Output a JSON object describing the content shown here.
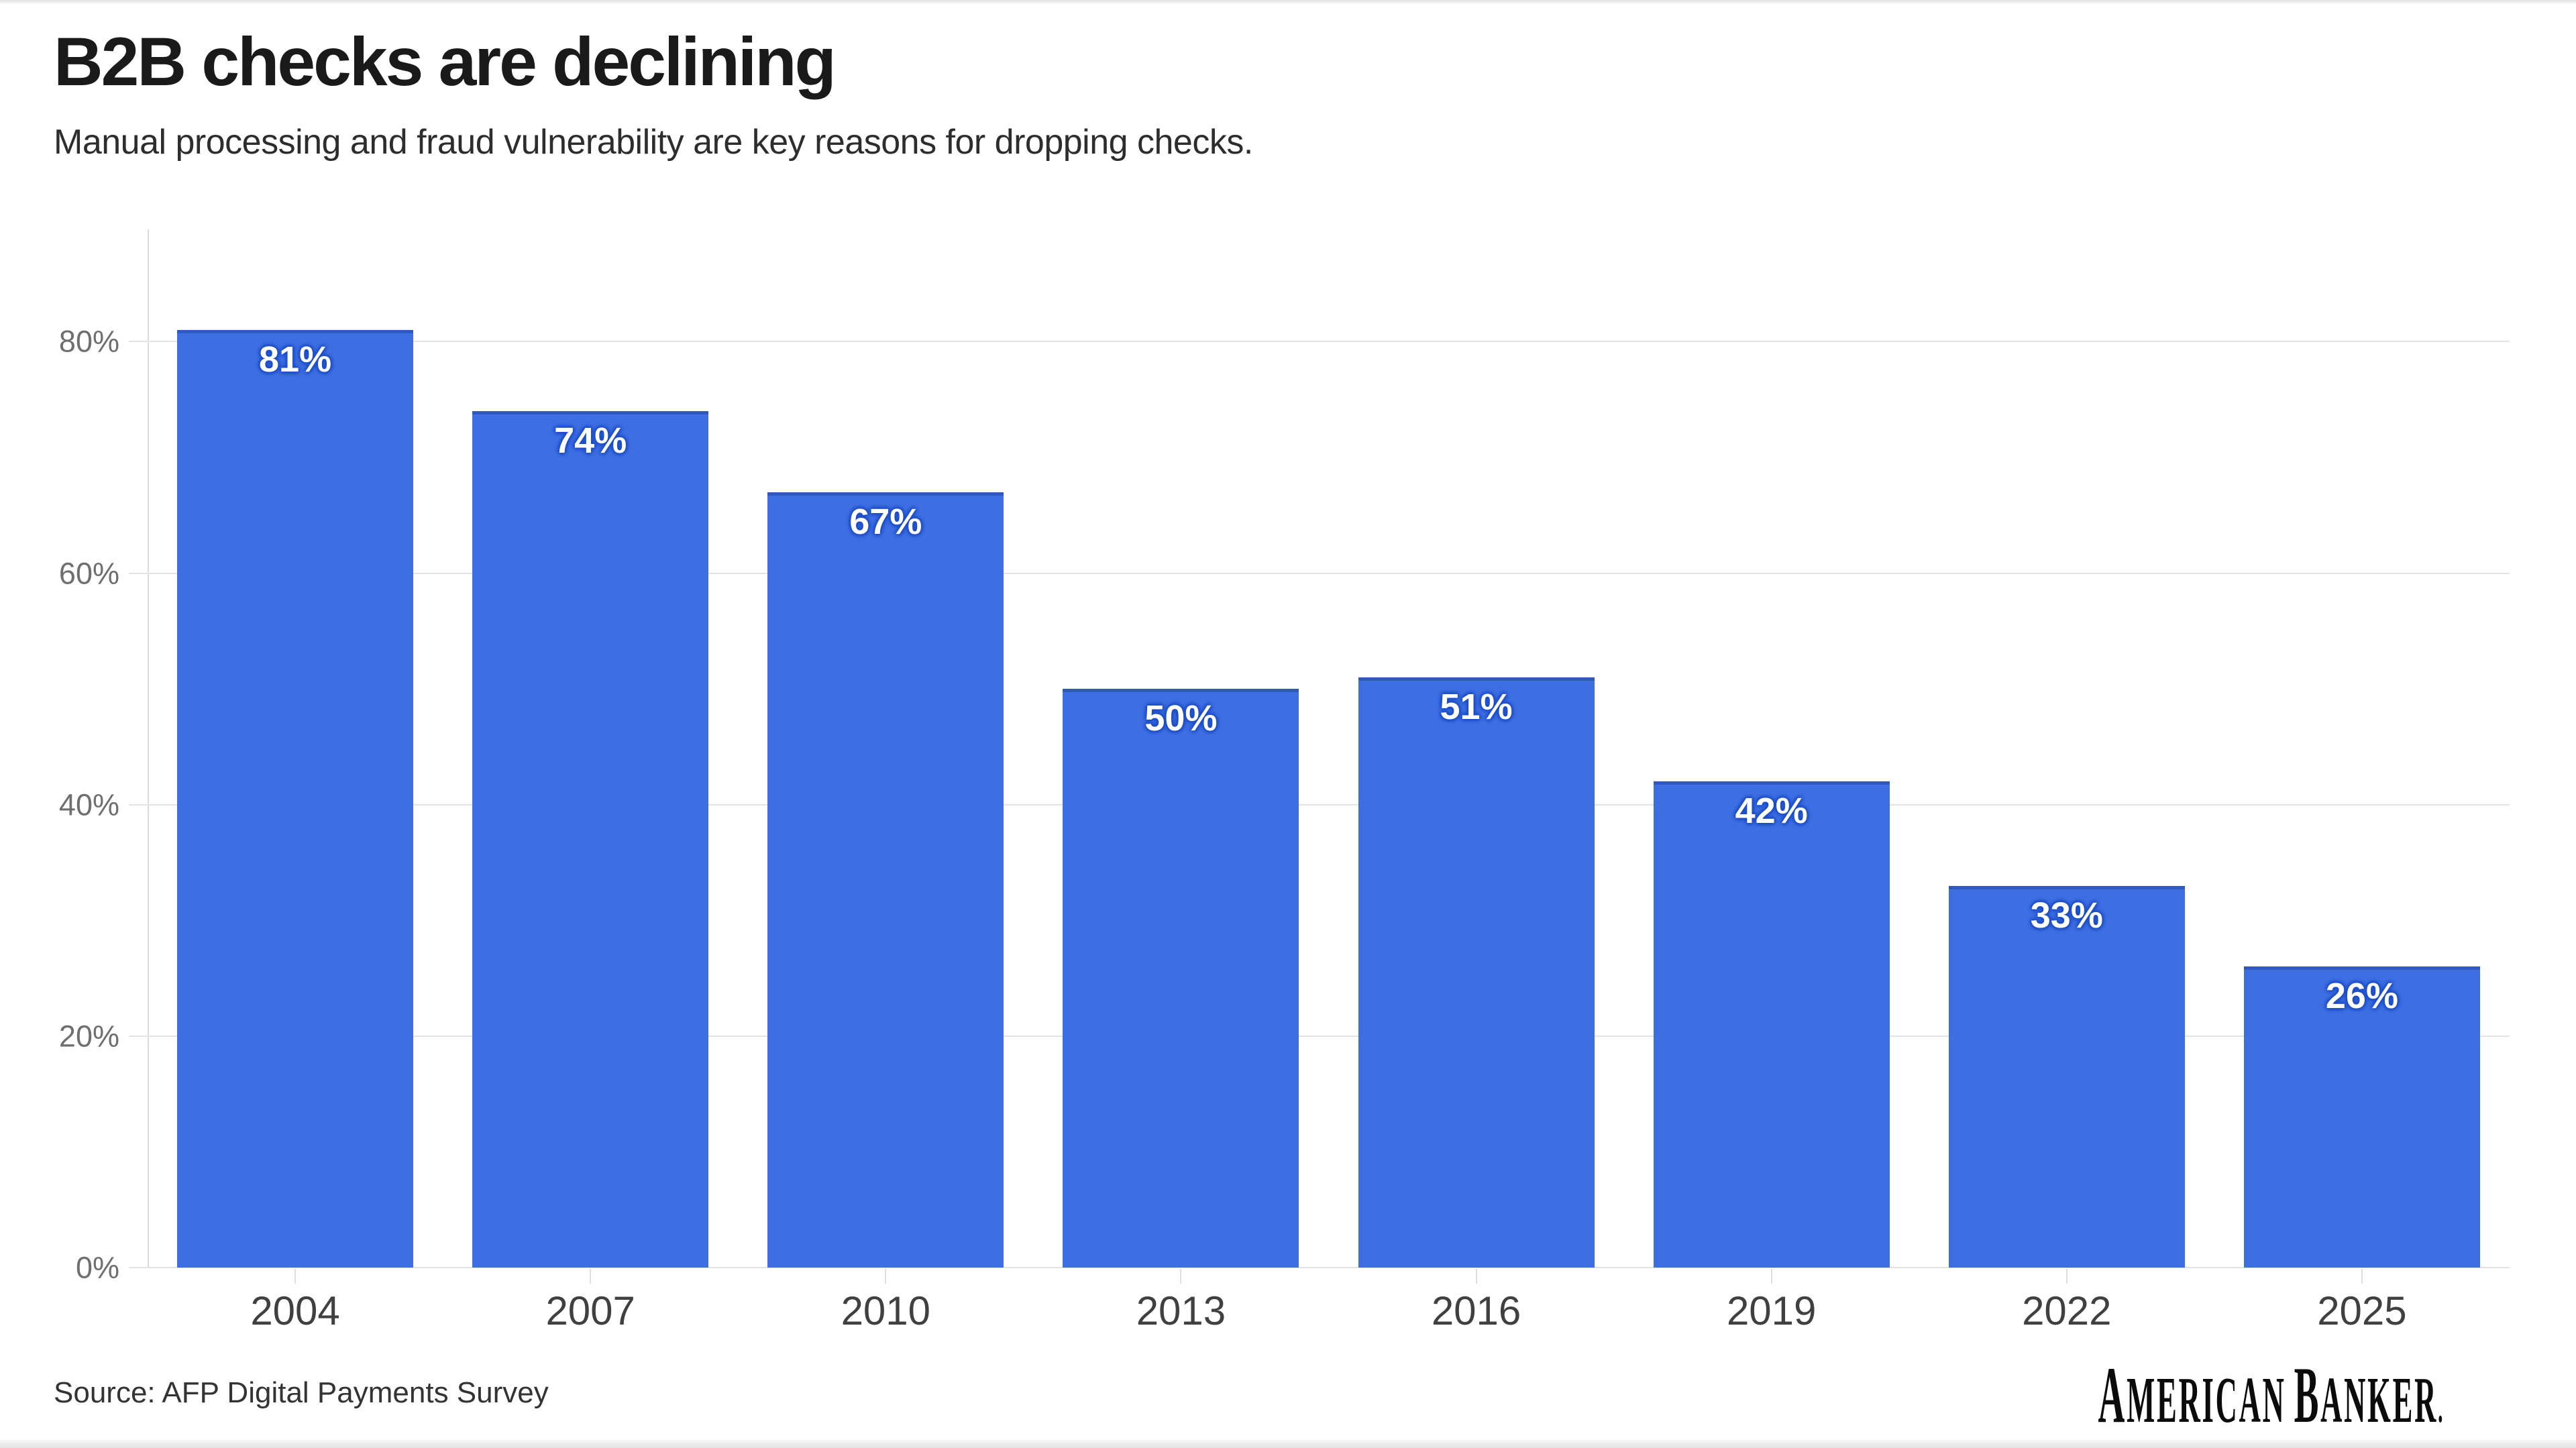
{
  "header": {
    "title": "B2B checks are declining",
    "subtitle": "Manual processing and fraud vulnerability are key reasons for dropping checks."
  },
  "footer": {
    "source": "Source: AFP Digital Payments Survey",
    "logo": {
      "word1_initial": "A",
      "word1_rest": "MERICAN",
      "word2_initial": "B",
      "word2_rest": "ANKER",
      "period": "."
    }
  },
  "chart_data": {
    "type": "bar",
    "title": "B2B checks are declining",
    "subtitle": "Manual processing and fraud vulnerability are key reasons for dropping checks.",
    "source": "Source: AFP Digital Payments Survey",
    "categories": [
      "2004",
      "2007",
      "2010",
      "2013",
      "2016",
      "2019",
      "2022",
      "2025"
    ],
    "values": [
      81,
      74,
      67,
      50,
      51,
      42,
      33,
      26
    ],
    "bar_labels": [
      "81%",
      "74%",
      "67%",
      "50%",
      "51%",
      "42%",
      "33%",
      "26%"
    ],
    "xlabel": "",
    "ylabel": "",
    "y_axis": {
      "ticks": [
        {
          "value": 0,
          "label": "0%"
        },
        {
          "value": 20,
          "label": "20%"
        },
        {
          "value": 40,
          "label": "40%"
        },
        {
          "value": 60,
          "label": "60%"
        },
        {
          "value": 80,
          "label": "80%"
        }
      ],
      "max_visible": 89.7
    },
    "grid": true,
    "legend": false,
    "layout": {
      "gridlines": "horizontal, behind bars",
      "value_labels": "inside bar top, centered"
    },
    "colors": {
      "bar": "#3D6EE2",
      "bar_top_edge": "#2E56C4",
      "bar_label_text": "#FFFFFF",
      "gridline": "#E4E4E4",
      "axis_line": "#DCDCDC",
      "y_tick_label": "#6F6F6F",
      "x_tick_label": "#404040"
    }
  }
}
